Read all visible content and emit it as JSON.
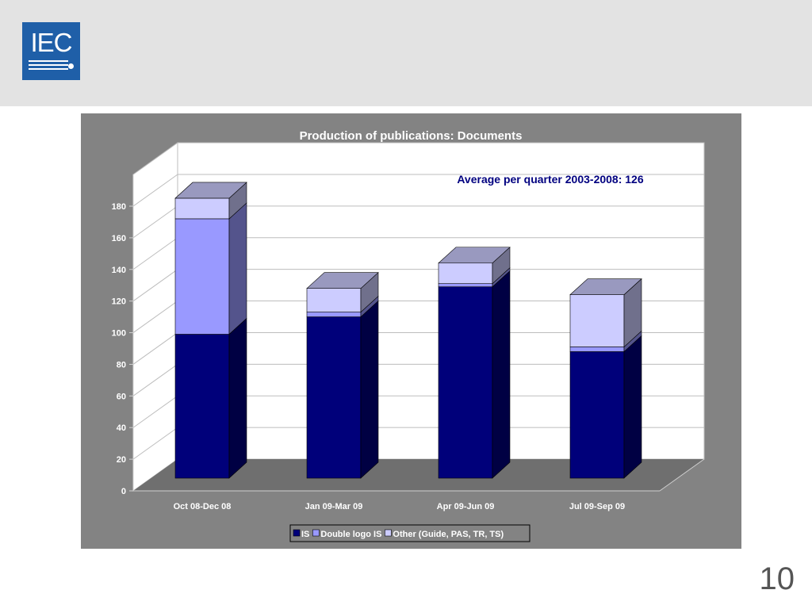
{
  "logo": {
    "text": "IEC"
  },
  "slide": {
    "number": "10"
  },
  "chart_data": {
    "type": "bar",
    "stacked": true,
    "three_d": true,
    "title": "Production of publications: Documents",
    "annotation": "Average per quarter 2003-2008: 126",
    "categories": [
      "Oct 08-Dec 08",
      "Jan 09-Mar 09",
      "Apr 09-Jun 09",
      "Jul 09-Sep 09"
    ],
    "series": [
      {
        "name": "IS",
        "values": [
          91,
          102,
          121,
          80
        ],
        "color": "#00007a"
      },
      {
        "name": "Double logo IS",
        "values": [
          73,
          3,
          2,
          3
        ],
        "color": "#9999ff"
      },
      {
        "name": "Other (Guide, PAS, TR, TS)",
        "values": [
          13,
          15,
          13,
          33
        ],
        "color": "#ccccff"
      }
    ],
    "yticks": [
      "0",
      "20",
      "40",
      "60",
      "80",
      "100",
      "120",
      "140",
      "160",
      "180"
    ],
    "ylim": [
      0,
      180
    ],
    "grid": true,
    "legend_position": "bottom",
    "colors": {
      "frame": "#838383",
      "plot_back": "#ffffff",
      "floor": "#6f6f6f",
      "annotation": "#000080"
    }
  }
}
